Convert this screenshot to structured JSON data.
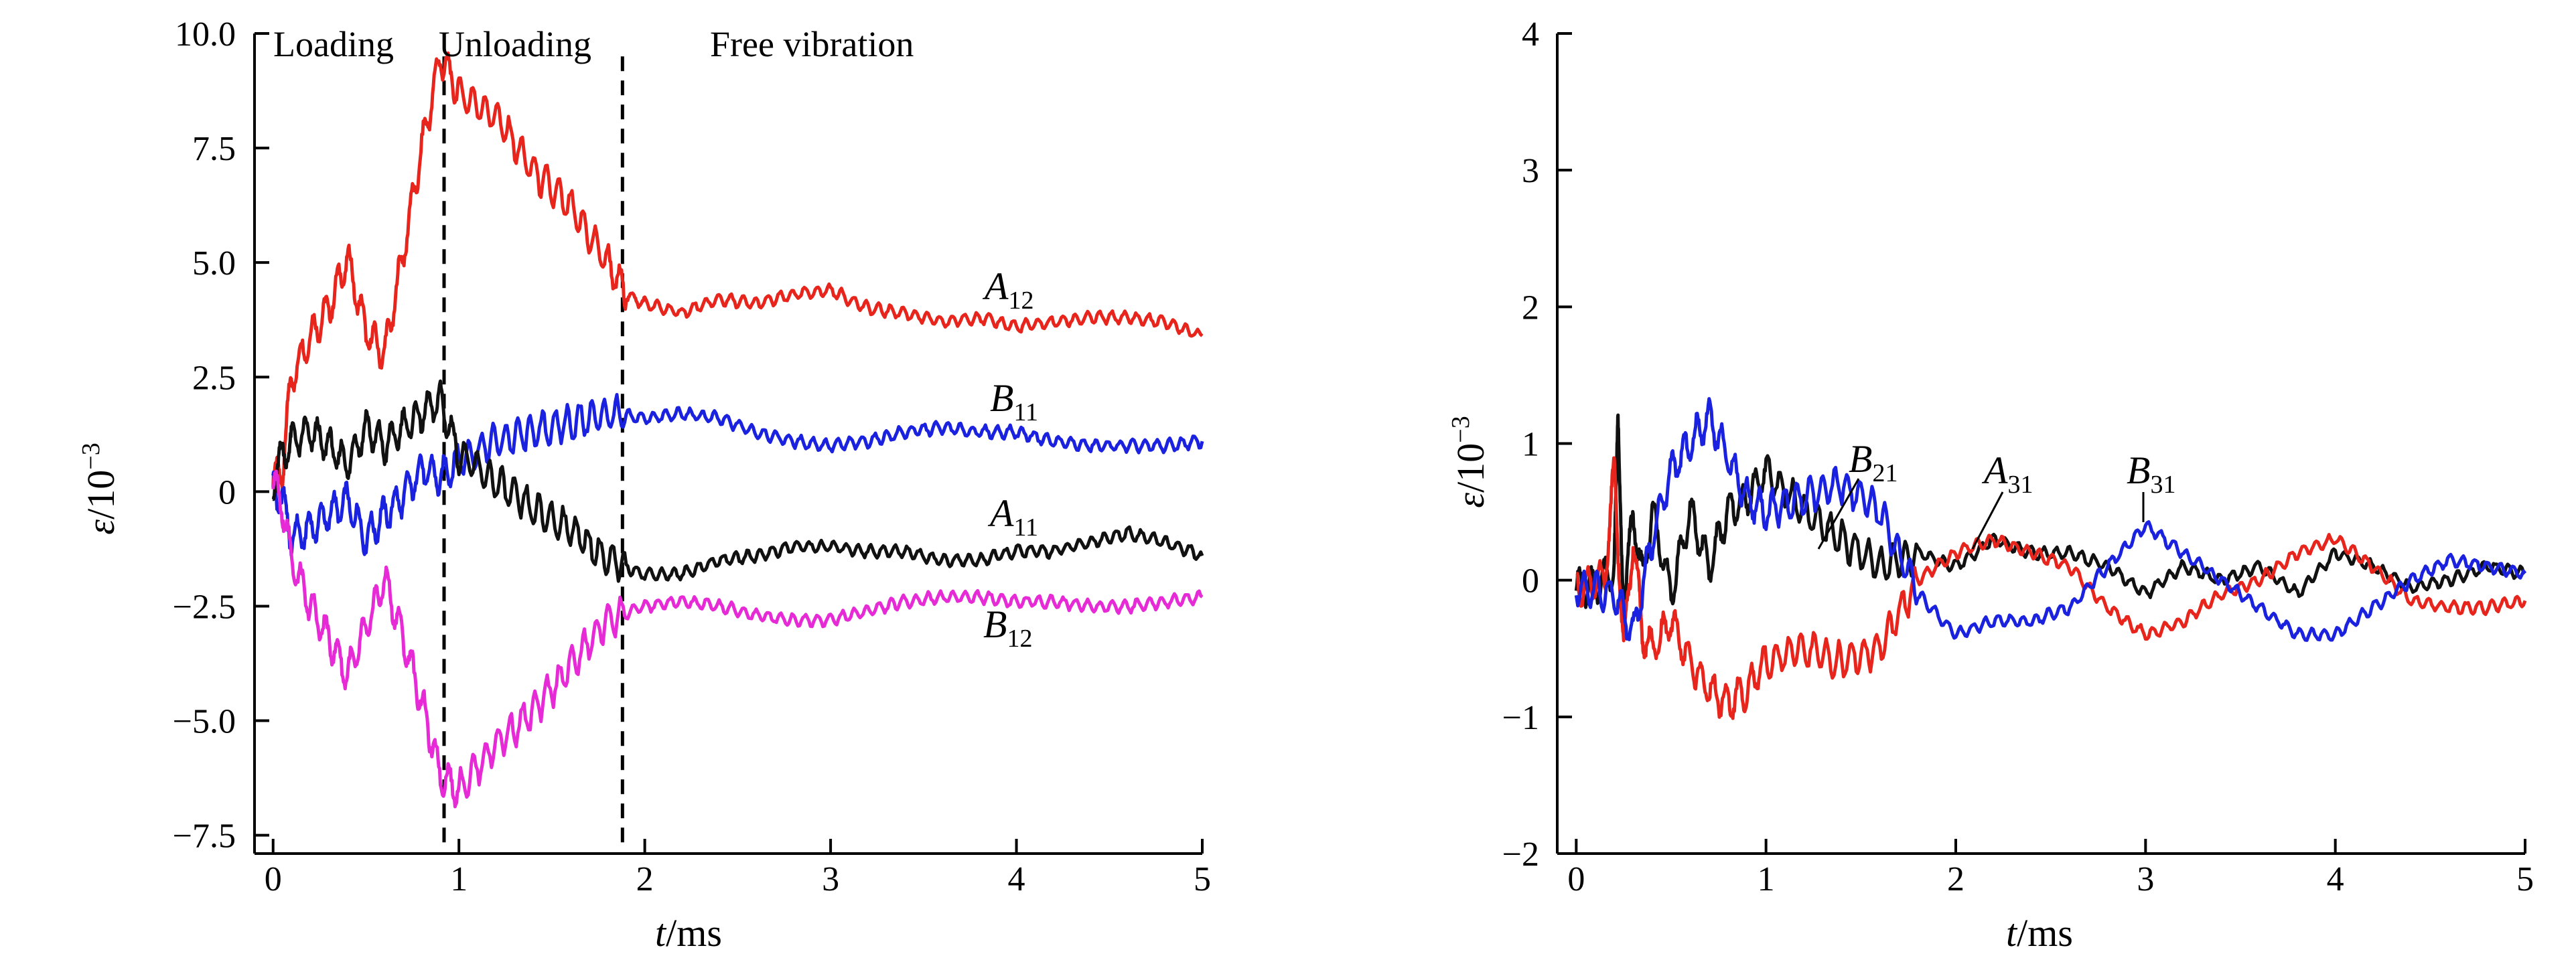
{
  "colors": {
    "red": "#e8251c",
    "blue": "#1a22e0",
    "black": "#111111",
    "magenta": "#e62ad6",
    "axis": "#000000"
  },
  "chart_data": [
    {
      "type": "line",
      "xlabel_var": "t",
      "xlabel_unit": "/ms",
      "ylabel_var": "ε",
      "ylabel_unit": "/10",
      "ylabel_exp": "−3",
      "xlim": [
        -0.1,
        5.0
      ],
      "ylim": [
        -7.9,
        10.0
      ],
      "xticks": [
        0,
        1,
        2,
        3,
        4,
        5
      ],
      "xtick_labels": [
        "0",
        "1",
        "2",
        "3",
        "4",
        "5"
      ],
      "yticks": [
        10.0,
        7.5,
        5.0,
        2.5,
        0,
        -2.5,
        -5.0,
        -7.5
      ],
      "ytick_labels": [
        "10.0",
        "7.5",
        "5.0",
        "2.5",
        "0",
        "−2.5",
        "−5.0",
        "−7.5"
      ],
      "phase_lines": [
        0.92,
        1.88
      ],
      "annotations": [
        "Loading",
        "Unloading",
        "Free vibration"
      ],
      "series": [
        {
          "name": "A",
          "sub": "12",
          "color": "red",
          "points": [
            [
              0,
              0.2
            ],
            [
              0.05,
              0.5
            ],
            [
              0.1,
              2.5
            ],
            [
              0.2,
              3.4
            ],
            [
              0.3,
              4.0
            ],
            [
              0.4,
              5.1
            ],
            [
              0.5,
              3.5
            ],
            [
              0.6,
              3.0
            ],
            [
              0.7,
              5.2
            ],
            [
              0.8,
              7.5
            ],
            [
              0.9,
              9.5
            ],
            [
              1.0,
              8.7
            ],
            [
              1.2,
              8.2
            ],
            [
              1.4,
              7.0
            ],
            [
              1.6,
              6.2
            ],
            [
              1.8,
              5.0
            ],
            [
              1.9,
              4.3
            ],
            [
              2.0,
              4.1
            ],
            [
              2.2,
              3.9
            ],
            [
              2.4,
              4.2
            ],
            [
              2.6,
              4.1
            ],
            [
              2.8,
              4.3
            ],
            [
              3.0,
              4.4
            ],
            [
              3.2,
              4.0
            ],
            [
              3.4,
              3.9
            ],
            [
              3.6,
              3.7
            ],
            [
              3.8,
              3.8
            ],
            [
              4.0,
              3.6
            ],
            [
              4.2,
              3.7
            ],
            [
              4.4,
              3.8
            ],
            [
              4.6,
              3.8
            ],
            [
              4.8,
              3.7
            ],
            [
              5.0,
              3.4
            ]
          ]
        },
        {
          "name": "B",
          "sub": "11",
          "color": "blue",
          "points": [
            [
              0,
              0.1
            ],
            [
              0.05,
              -0.2
            ],
            [
              0.1,
              -1.0
            ],
            [
              0.2,
              -0.8
            ],
            [
              0.3,
              -0.5
            ],
            [
              0.4,
              -0.2
            ],
            [
              0.5,
              -1.0
            ],
            [
              0.6,
              -0.5
            ],
            [
              0.7,
              -0.1
            ],
            [
              0.8,
              0.5
            ],
            [
              0.9,
              0.3
            ],
            [
              1.0,
              0.7
            ],
            [
              1.2,
              1.1
            ],
            [
              1.4,
              1.3
            ],
            [
              1.6,
              1.5
            ],
            [
              1.8,
              1.7
            ],
            [
              2.0,
              1.6
            ],
            [
              2.2,
              1.7
            ],
            [
              2.4,
              1.6
            ],
            [
              2.6,
              1.3
            ],
            [
              2.8,
              1.1
            ],
            [
              3.0,
              1.0
            ],
            [
              3.2,
              1.1
            ],
            [
              3.4,
              1.3
            ],
            [
              3.6,
              1.4
            ],
            [
              3.8,
              1.3
            ],
            [
              4.0,
              1.3
            ],
            [
              4.2,
              1.1
            ],
            [
              4.4,
              1.0
            ],
            [
              4.6,
              1.0
            ],
            [
              4.8,
              1.0
            ],
            [
              5.0,
              1.1
            ]
          ]
        },
        {
          "name": "A",
          "sub": "11",
          "color": "black",
          "points": [
            [
              0,
              0.2
            ],
            [
              0.05,
              0.8
            ],
            [
              0.1,
              1.1
            ],
            [
              0.2,
              1.3
            ],
            [
              0.3,
              1.0
            ],
            [
              0.4,
              0.6
            ],
            [
              0.5,
              1.4
            ],
            [
              0.6,
              1.0
            ],
            [
              0.7,
              1.4
            ],
            [
              0.8,
              1.7
            ],
            [
              0.9,
              2.0
            ],
            [
              1.0,
              0.8
            ],
            [
              1.2,
              0.2
            ],
            [
              1.4,
              -0.4
            ],
            [
              1.6,
              -0.8
            ],
            [
              1.8,
              -1.5
            ],
            [
              2.0,
              -1.8
            ],
            [
              2.2,
              -1.8
            ],
            [
              2.4,
              -1.5
            ],
            [
              2.6,
              -1.4
            ],
            [
              2.8,
              -1.2
            ],
            [
              3.0,
              -1.2
            ],
            [
              3.2,
              -1.3
            ],
            [
              3.4,
              -1.3
            ],
            [
              3.6,
              -1.5
            ],
            [
              3.8,
              -1.5
            ],
            [
              4.0,
              -1.3
            ],
            [
              4.2,
              -1.3
            ],
            [
              4.4,
              -1.1
            ],
            [
              4.6,
              -0.9
            ],
            [
              4.8,
              -1.1
            ],
            [
              5.0,
              -1.4
            ]
          ]
        },
        {
          "name": "B",
          "sub": "12",
          "color": "magenta",
          "points": [
            [
              0,
              0.2
            ],
            [
              0.05,
              -0.3
            ],
            [
              0.1,
              -1.5
            ],
            [
              0.2,
              -2.5
            ],
            [
              0.3,
              -3.2
            ],
            [
              0.4,
              -4.0
            ],
            [
              0.5,
              -3.0
            ],
            [
              0.6,
              -1.9
            ],
            [
              0.7,
              -3.2
            ],
            [
              0.8,
              -4.6
            ],
            [
              0.9,
              -6.2
            ],
            [
              1.0,
              -6.5
            ],
            [
              1.2,
              -5.5
            ],
            [
              1.4,
              -4.8
            ],
            [
              1.6,
              -3.8
            ],
            [
              1.8,
              -2.8
            ],
            [
              2.0,
              -2.5
            ],
            [
              2.2,
              -2.4
            ],
            [
              2.4,
              -2.5
            ],
            [
              2.6,
              -2.7
            ],
            [
              2.8,
              -2.8
            ],
            [
              3.0,
              -2.8
            ],
            [
              3.2,
              -2.6
            ],
            [
              3.4,
              -2.4
            ],
            [
              3.6,
              -2.3
            ],
            [
              3.8,
              -2.3
            ],
            [
              4.0,
              -2.4
            ],
            [
              4.2,
              -2.4
            ],
            [
              4.4,
              -2.5
            ],
            [
              4.6,
              -2.5
            ],
            [
              4.8,
              -2.4
            ],
            [
              5.0,
              -2.3
            ]
          ]
        }
      ]
    },
    {
      "type": "line",
      "xlabel_var": "t",
      "xlabel_unit": "/ms",
      "ylabel_var": "ε",
      "ylabel_unit": "/10",
      "ylabel_exp": "−3",
      "xlim": [
        -0.1,
        5.0
      ],
      "ylim": [
        -2.0,
        4.0
      ],
      "xticks": [
        0,
        1,
        2,
        3,
        4,
        5
      ],
      "xtick_labels": [
        "0",
        "1",
        "2",
        "3",
        "4",
        "5"
      ],
      "yticks": [
        4,
        3,
        2,
        1,
        0,
        -1,
        -2
      ],
      "ytick_labels": [
        "4",
        "3",
        "2",
        "1",
        "0",
        "−1",
        "−2"
      ],
      "series": [
        {
          "name": "B",
          "sub": "21",
          "color": "black",
          "points": [
            [
              0,
              -0.05
            ],
            [
              0.1,
              -0.05
            ],
            [
              0.2,
              0.1
            ],
            [
              0.22,
              1.1
            ],
            [
              0.25,
              -0.2
            ],
            [
              0.3,
              0.5
            ],
            [
              0.35,
              0.0
            ],
            [
              0.4,
              0.5
            ],
            [
              0.5,
              -0.1
            ],
            [
              0.6,
              0.5
            ],
            [
              0.7,
              0.1
            ],
            [
              0.8,
              0.5
            ],
            [
              0.9,
              0.6
            ],
            [
              1.0,
              0.8
            ],
            [
              1.2,
              0.5
            ],
            [
              1.4,
              0.3
            ],
            [
              1.6,
              0.1
            ],
            [
              1.8,
              0.2
            ],
            [
              2.0,
              0.1
            ],
            [
              2.2,
              0.3
            ],
            [
              2.4,
              0.2
            ],
            [
              2.6,
              0.2
            ],
            [
              2.8,
              0.1
            ],
            [
              3.0,
              -0.1
            ],
            [
              3.2,
              0.1
            ],
            [
              3.4,
              0.0
            ],
            [
              3.6,
              0.1
            ],
            [
              3.8,
              -0.1
            ],
            [
              4.0,
              0.2
            ],
            [
              4.2,
              0.1
            ],
            [
              4.4,
              -0.05
            ],
            [
              4.6,
              0.0
            ],
            [
              4.8,
              0.1
            ],
            [
              5.0,
              0.05
            ]
          ]
        },
        {
          "name": "A",
          "sub": "31",
          "color": "red",
          "points": [
            [
              0,
              -0.05
            ],
            [
              0.15,
              0.0
            ],
            [
              0.2,
              0.8
            ],
            [
              0.25,
              -0.5
            ],
            [
              0.3,
              0.3
            ],
            [
              0.35,
              -0.4
            ],
            [
              0.4,
              -0.5
            ],
            [
              0.5,
              -0.3
            ],
            [
              0.6,
              -0.6
            ],
            [
              0.7,
              -0.8
            ],
            [
              0.8,
              -0.9
            ],
            [
              0.9,
              -0.8
            ],
            [
              1.0,
              -0.6
            ],
            [
              1.2,
              -0.5
            ],
            [
              1.4,
              -0.6
            ],
            [
              1.6,
              -0.5
            ],
            [
              1.8,
              0.0
            ],
            [
              2.0,
              0.2
            ],
            [
              2.2,
              0.3
            ],
            [
              2.4,
              0.2
            ],
            [
              2.6,
              0.1
            ],
            [
              2.8,
              -0.2
            ],
            [
              3.0,
              -0.4
            ],
            [
              3.2,
              -0.3
            ],
            [
              3.4,
              -0.1
            ],
            [
              3.6,
              0.0
            ],
            [
              3.8,
              0.2
            ],
            [
              4.0,
              0.3
            ],
            [
              4.2,
              0.1
            ],
            [
              4.4,
              -0.15
            ],
            [
              4.6,
              -0.2
            ],
            [
              4.8,
              -0.2
            ],
            [
              5.0,
              -0.15
            ]
          ]
        },
        {
          "name": "B",
          "sub": "31",
          "color": "blue",
          "points": [
            [
              0,
              -0.05
            ],
            [
              0.2,
              -0.1
            ],
            [
              0.3,
              -0.4
            ],
            [
              0.4,
              0.3
            ],
            [
              0.5,
              0.8
            ],
            [
              0.6,
              1.0
            ],
            [
              0.7,
              1.2
            ],
            [
              0.8,
              0.9
            ],
            [
              0.9,
              0.6
            ],
            [
              1.0,
              0.5
            ],
            [
              1.2,
              0.6
            ],
            [
              1.4,
              0.7
            ],
            [
              1.6,
              0.5
            ],
            [
              1.8,
              -0.1
            ],
            [
              2.0,
              -0.4
            ],
            [
              2.2,
              -0.3
            ],
            [
              2.4,
              -0.3
            ],
            [
              2.6,
              -0.2
            ],
            [
              2.8,
              0.1
            ],
            [
              3.0,
              0.4
            ],
            [
              3.2,
              0.2
            ],
            [
              3.4,
              0.0
            ],
            [
              3.6,
              -0.2
            ],
            [
              3.8,
              -0.4
            ],
            [
              4.0,
              -0.4
            ],
            [
              4.2,
              -0.2
            ],
            [
              4.4,
              0.0
            ],
            [
              4.6,
              0.15
            ],
            [
              4.8,
              0.1
            ],
            [
              5.0,
              0.05
            ]
          ]
        }
      ]
    }
  ]
}
